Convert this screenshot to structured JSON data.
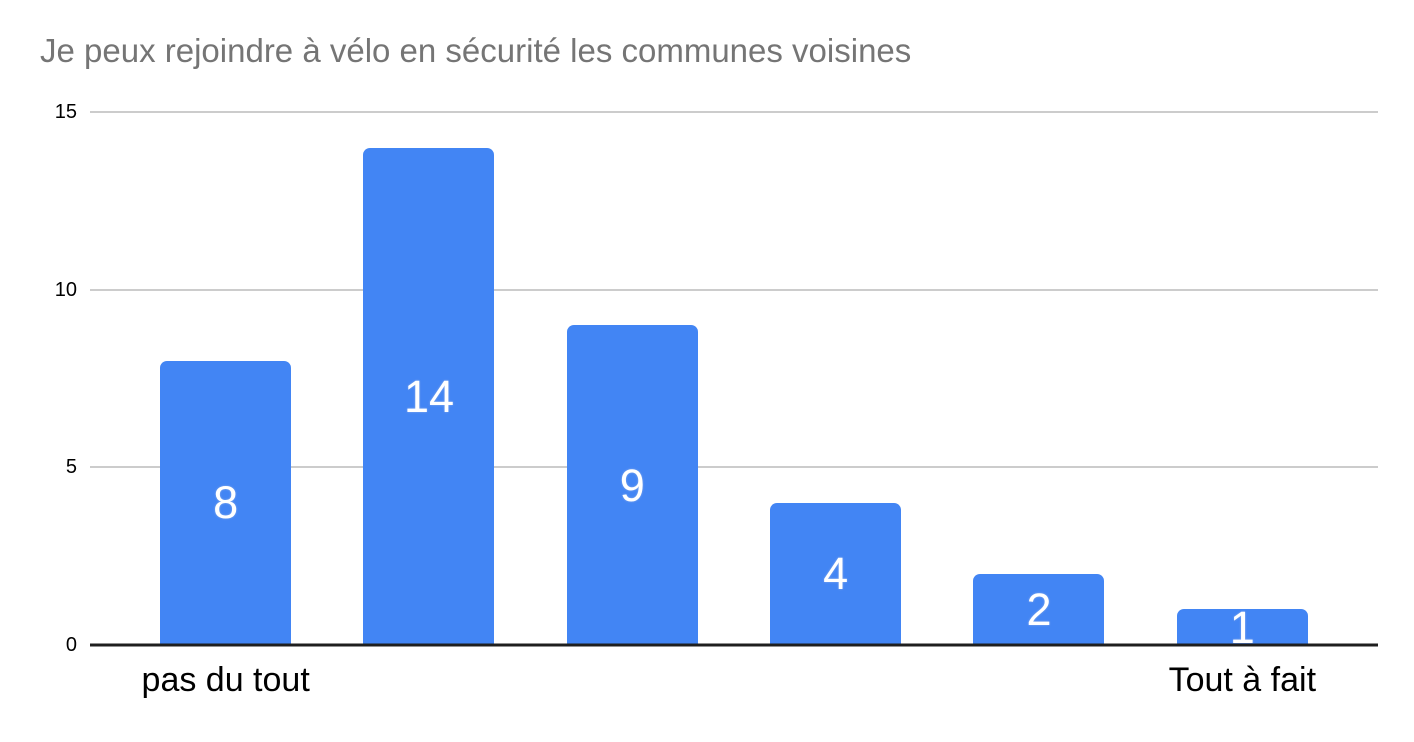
{
  "chart_data": {
    "type": "bar",
    "title": "Je peux rejoindre à vélo en sécurité les communes voisines",
    "categories": [
      "pas du tout",
      "",
      "",
      "",
      "",
      "Tout à fait"
    ],
    "values": [
      8,
      14,
      9,
      4,
      2,
      1
    ],
    "data_labels": [
      "8",
      "14",
      "9",
      "4",
      "2",
      "1"
    ],
    "xlabel": "",
    "ylabel": "",
    "ylim": [
      0,
      15
    ],
    "yticks": [
      0,
      5,
      10,
      15
    ],
    "grid": true,
    "legend": "none",
    "colors": {
      "bar": "#4285f4",
      "data_label": "#ffffff",
      "title": "#757575",
      "gridline": "#cccccc",
      "axis_line": "#1f1f1f",
      "tick_label": "#000000"
    }
  }
}
